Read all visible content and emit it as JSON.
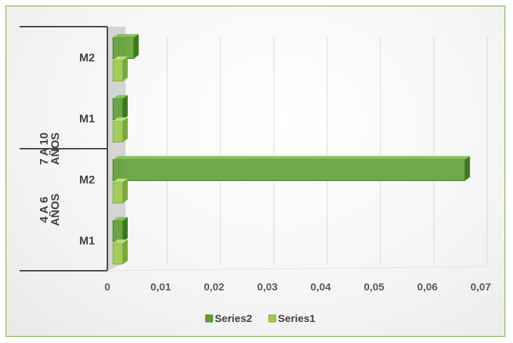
{
  "chart_data": {
    "type": "bar",
    "orientation": "horizontal",
    "groups": [
      {
        "label": "4 A 6 AÑOS",
        "categories": [
          "M1",
          "M2"
        ]
      },
      {
        "label": "7 A 10 AÑOS",
        "categories": [
          "M1",
          "M2"
        ]
      }
    ],
    "categories": [
      "4 A 6 AÑOS M1",
      "4 A 6 AÑOS M2",
      "7 A 10 AÑOS M1",
      "7 A 10 AÑOS M2"
    ],
    "series": [
      {
        "name": "Series2",
        "values": [
          0.0,
          0.066,
          0.0014,
          0.0039
        ],
        "color": "#5f9e35"
      },
      {
        "name": "Series1",
        "values": [
          0.0,
          0.0,
          0.0,
          0.0
        ],
        "color": "#9ccc4e"
      }
    ],
    "x_ticks": [
      "0",
      "0,01",
      "0,02",
      "0,03",
      "0,04",
      "0,05",
      "0,06",
      "0,07"
    ],
    "xlim": [
      0,
      0.07
    ],
    "grid": "vertical",
    "legend": "bottom",
    "title": "",
    "xlabel": "",
    "ylabel": ""
  }
}
